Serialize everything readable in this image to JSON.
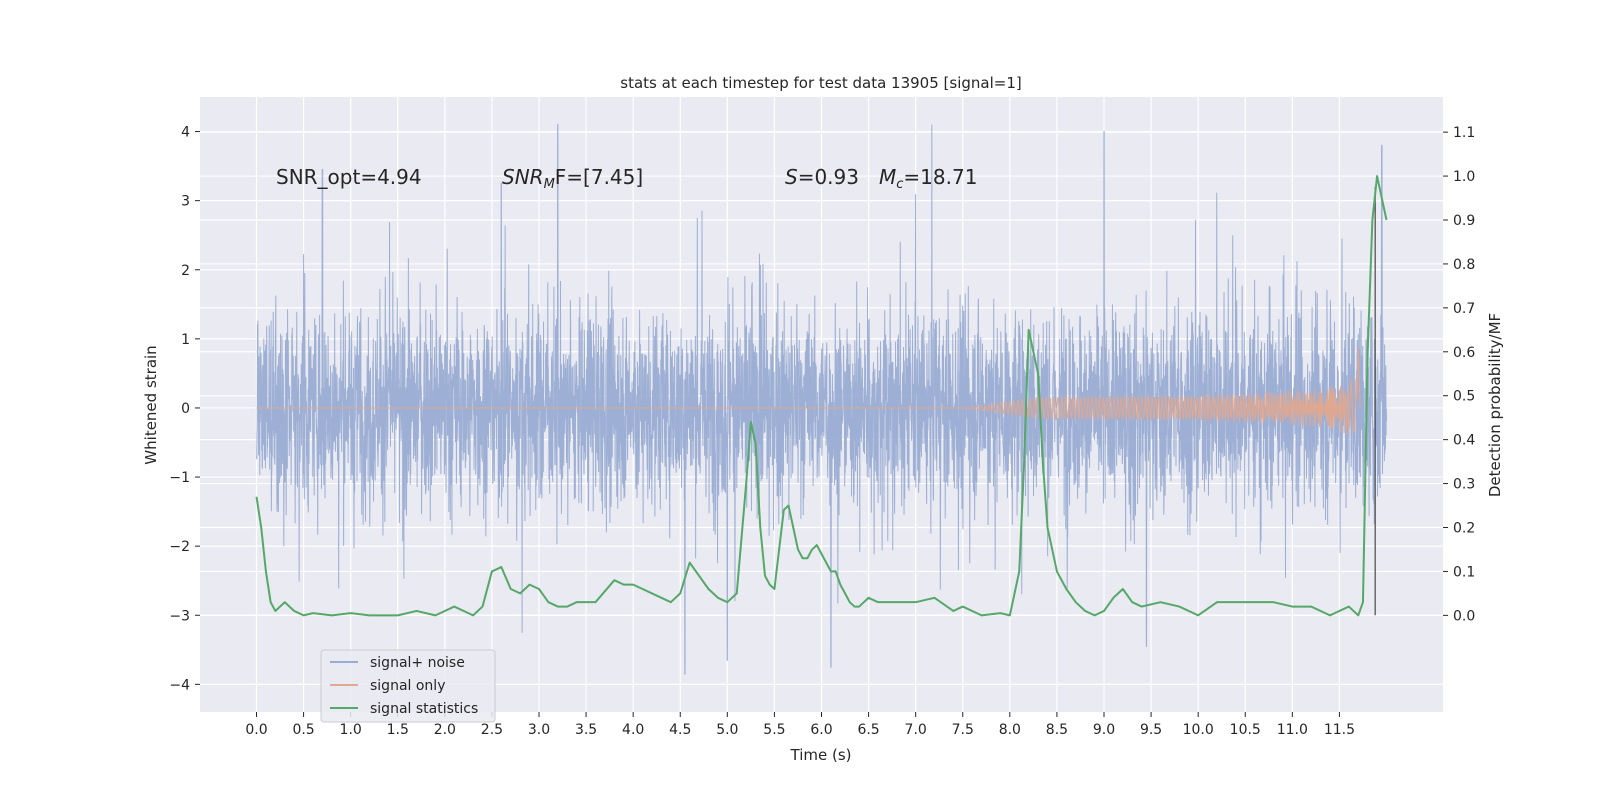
{
  "chart_data": {
    "type": "line",
    "title": "stats at each timestep for test data 13905 [signal=1]",
    "xlabel": "Time (s)",
    "ylabel_left": "Whitened strain",
    "ylabel_right": "Detection probability/MF",
    "xlim": [
      -0.6,
      12.6
    ],
    "ylim_left": [
      -4.4,
      4.5
    ],
    "ylim_right": [
      -0.22,
      1.18
    ],
    "x_ticks": [
      "0.0",
      "0.5",
      "1.0",
      "1.5",
      "2.0",
      "2.5",
      "3.0",
      "3.5",
      "4.0",
      "4.5",
      "5.0",
      "5.5",
      "6.0",
      "6.5",
      "7.0",
      "7.5",
      "8.0",
      "8.5",
      "9.0",
      "9.5",
      "10.0",
      "10.5",
      "11.0",
      "11.5"
    ],
    "y_ticks_left": [
      "4",
      "3",
      "2",
      "1",
      "0",
      "−1",
      "−2",
      "−3",
      "−4"
    ],
    "y_ticks_right": [
      "1.1",
      "1.0",
      "0.9",
      "0.8",
      "0.7",
      "0.6",
      "0.5",
      "0.4",
      "0.3",
      "0.2",
      "0.1",
      "0.0"
    ],
    "grid": true,
    "legend_placement": "lower-left",
    "annotations": {
      "snr_opt": "SNR_opt=4.94",
      "snr_mf_sym": "SNR",
      "snr_mf_sub": "M",
      "snr_mf_rest": "F=[7.45]",
      "s_sym": "S",
      "s_rest": "=0.93",
      "mc_sym": "M",
      "mc_sub": "c",
      "mc_rest": "=18.71"
    },
    "series": [
      {
        "name": "signal+ noise",
        "axis": "left",
        "color": "#99acd2",
        "x_range": [
          0.0,
          12.0
        ],
        "core_amplitude": 1.35,
        "typical_peak": 2.3,
        "max": 4.1,
        "min": -3.85,
        "notable_peaks": [
          [
            0.7,
            3.45
          ],
          [
            3.2,
            4.1
          ],
          [
            2.6,
            3.25
          ],
          [
            9.0,
            4.0
          ],
          [
            11.95,
            3.8
          ],
          [
            4.55,
            -3.85
          ],
          [
            6.1,
            -3.75
          ],
          [
            5.0,
            -3.65
          ],
          [
            9.45,
            -3.45
          ]
        ]
      },
      {
        "name": "signal only",
        "axis": "left",
        "color": "#e0a890",
        "chirp_start": 7.5,
        "merger_time": 11.7,
        "peak_amplitude": 0.95
      },
      {
        "name": "signal statistics",
        "axis": "right",
        "color": "#55a868",
        "x": [
          0.0,
          0.05,
          0.1,
          0.15,
          0.2,
          0.3,
          0.4,
          0.5,
          0.6,
          0.8,
          1.0,
          1.2,
          1.5,
          1.7,
          1.9,
          2.1,
          2.3,
          2.4,
          2.5,
          2.6,
          2.7,
          2.8,
          2.9,
          3.0,
          3.1,
          3.2,
          3.3,
          3.4,
          3.5,
          3.6,
          3.8,
          3.9,
          4.0,
          4.1,
          4.3,
          4.4,
          4.5,
          4.6,
          4.7,
          4.8,
          4.9,
          5.0,
          5.1,
          5.2,
          5.25,
          5.3,
          5.35,
          5.4,
          5.45,
          5.5,
          5.6,
          5.65,
          5.7,
          5.75,
          5.8,
          5.85,
          5.9,
          5.95,
          6.0,
          6.05,
          6.1,
          6.15,
          6.2,
          6.25,
          6.3,
          6.35,
          6.4,
          6.5,
          6.6,
          6.8,
          7.0,
          7.2,
          7.4,
          7.5,
          7.7,
          7.9,
          8.0,
          8.1,
          8.15,
          8.2,
          8.25,
          8.3,
          8.35,
          8.4,
          8.45,
          8.5,
          8.6,
          8.7,
          8.8,
          8.9,
          9.0,
          9.1,
          9.2,
          9.3,
          9.4,
          9.6,
          9.8,
          10.0,
          10.2,
          10.4,
          10.6,
          10.8,
          11.0,
          11.2,
          11.4,
          11.6,
          11.7,
          11.75,
          11.8,
          11.85,
          11.9,
          11.95,
          12.0
        ],
        "y": [
          0.27,
          0.2,
          0.1,
          0.03,
          0.01,
          0.03,
          0.01,
          0.0,
          0.005,
          0.0,
          0.005,
          0.0,
          0.0,
          0.01,
          0.0,
          0.02,
          0.0,
          0.02,
          0.1,
          0.11,
          0.06,
          0.05,
          0.07,
          0.06,
          0.03,
          0.02,
          0.02,
          0.03,
          0.03,
          0.03,
          0.08,
          0.07,
          0.07,
          0.06,
          0.04,
          0.03,
          0.05,
          0.12,
          0.09,
          0.06,
          0.04,
          0.03,
          0.05,
          0.3,
          0.44,
          0.39,
          0.2,
          0.09,
          0.07,
          0.06,
          0.24,
          0.25,
          0.2,
          0.15,
          0.13,
          0.13,
          0.15,
          0.16,
          0.14,
          0.12,
          0.1,
          0.1,
          0.07,
          0.05,
          0.03,
          0.02,
          0.02,
          0.04,
          0.03,
          0.03,
          0.03,
          0.04,
          0.01,
          0.02,
          0.0,
          0.005,
          0.0,
          0.1,
          0.34,
          0.65,
          0.6,
          0.55,
          0.35,
          0.2,
          0.15,
          0.1,
          0.06,
          0.03,
          0.01,
          0.0,
          0.01,
          0.04,
          0.06,
          0.03,
          0.02,
          0.03,
          0.02,
          0.0,
          0.03,
          0.03,
          0.03,
          0.03,
          0.02,
          0.02,
          0.0,
          0.02,
          0.0,
          0.03,
          0.6,
          0.9,
          1.0,
          0.95,
          0.9
        ]
      },
      {
        "name": "",
        "axis": "left",
        "color": "#555555",
        "type": "vline",
        "x": 11.88,
        "y_range": [
          -3.0,
          3.2
        ]
      }
    ]
  }
}
